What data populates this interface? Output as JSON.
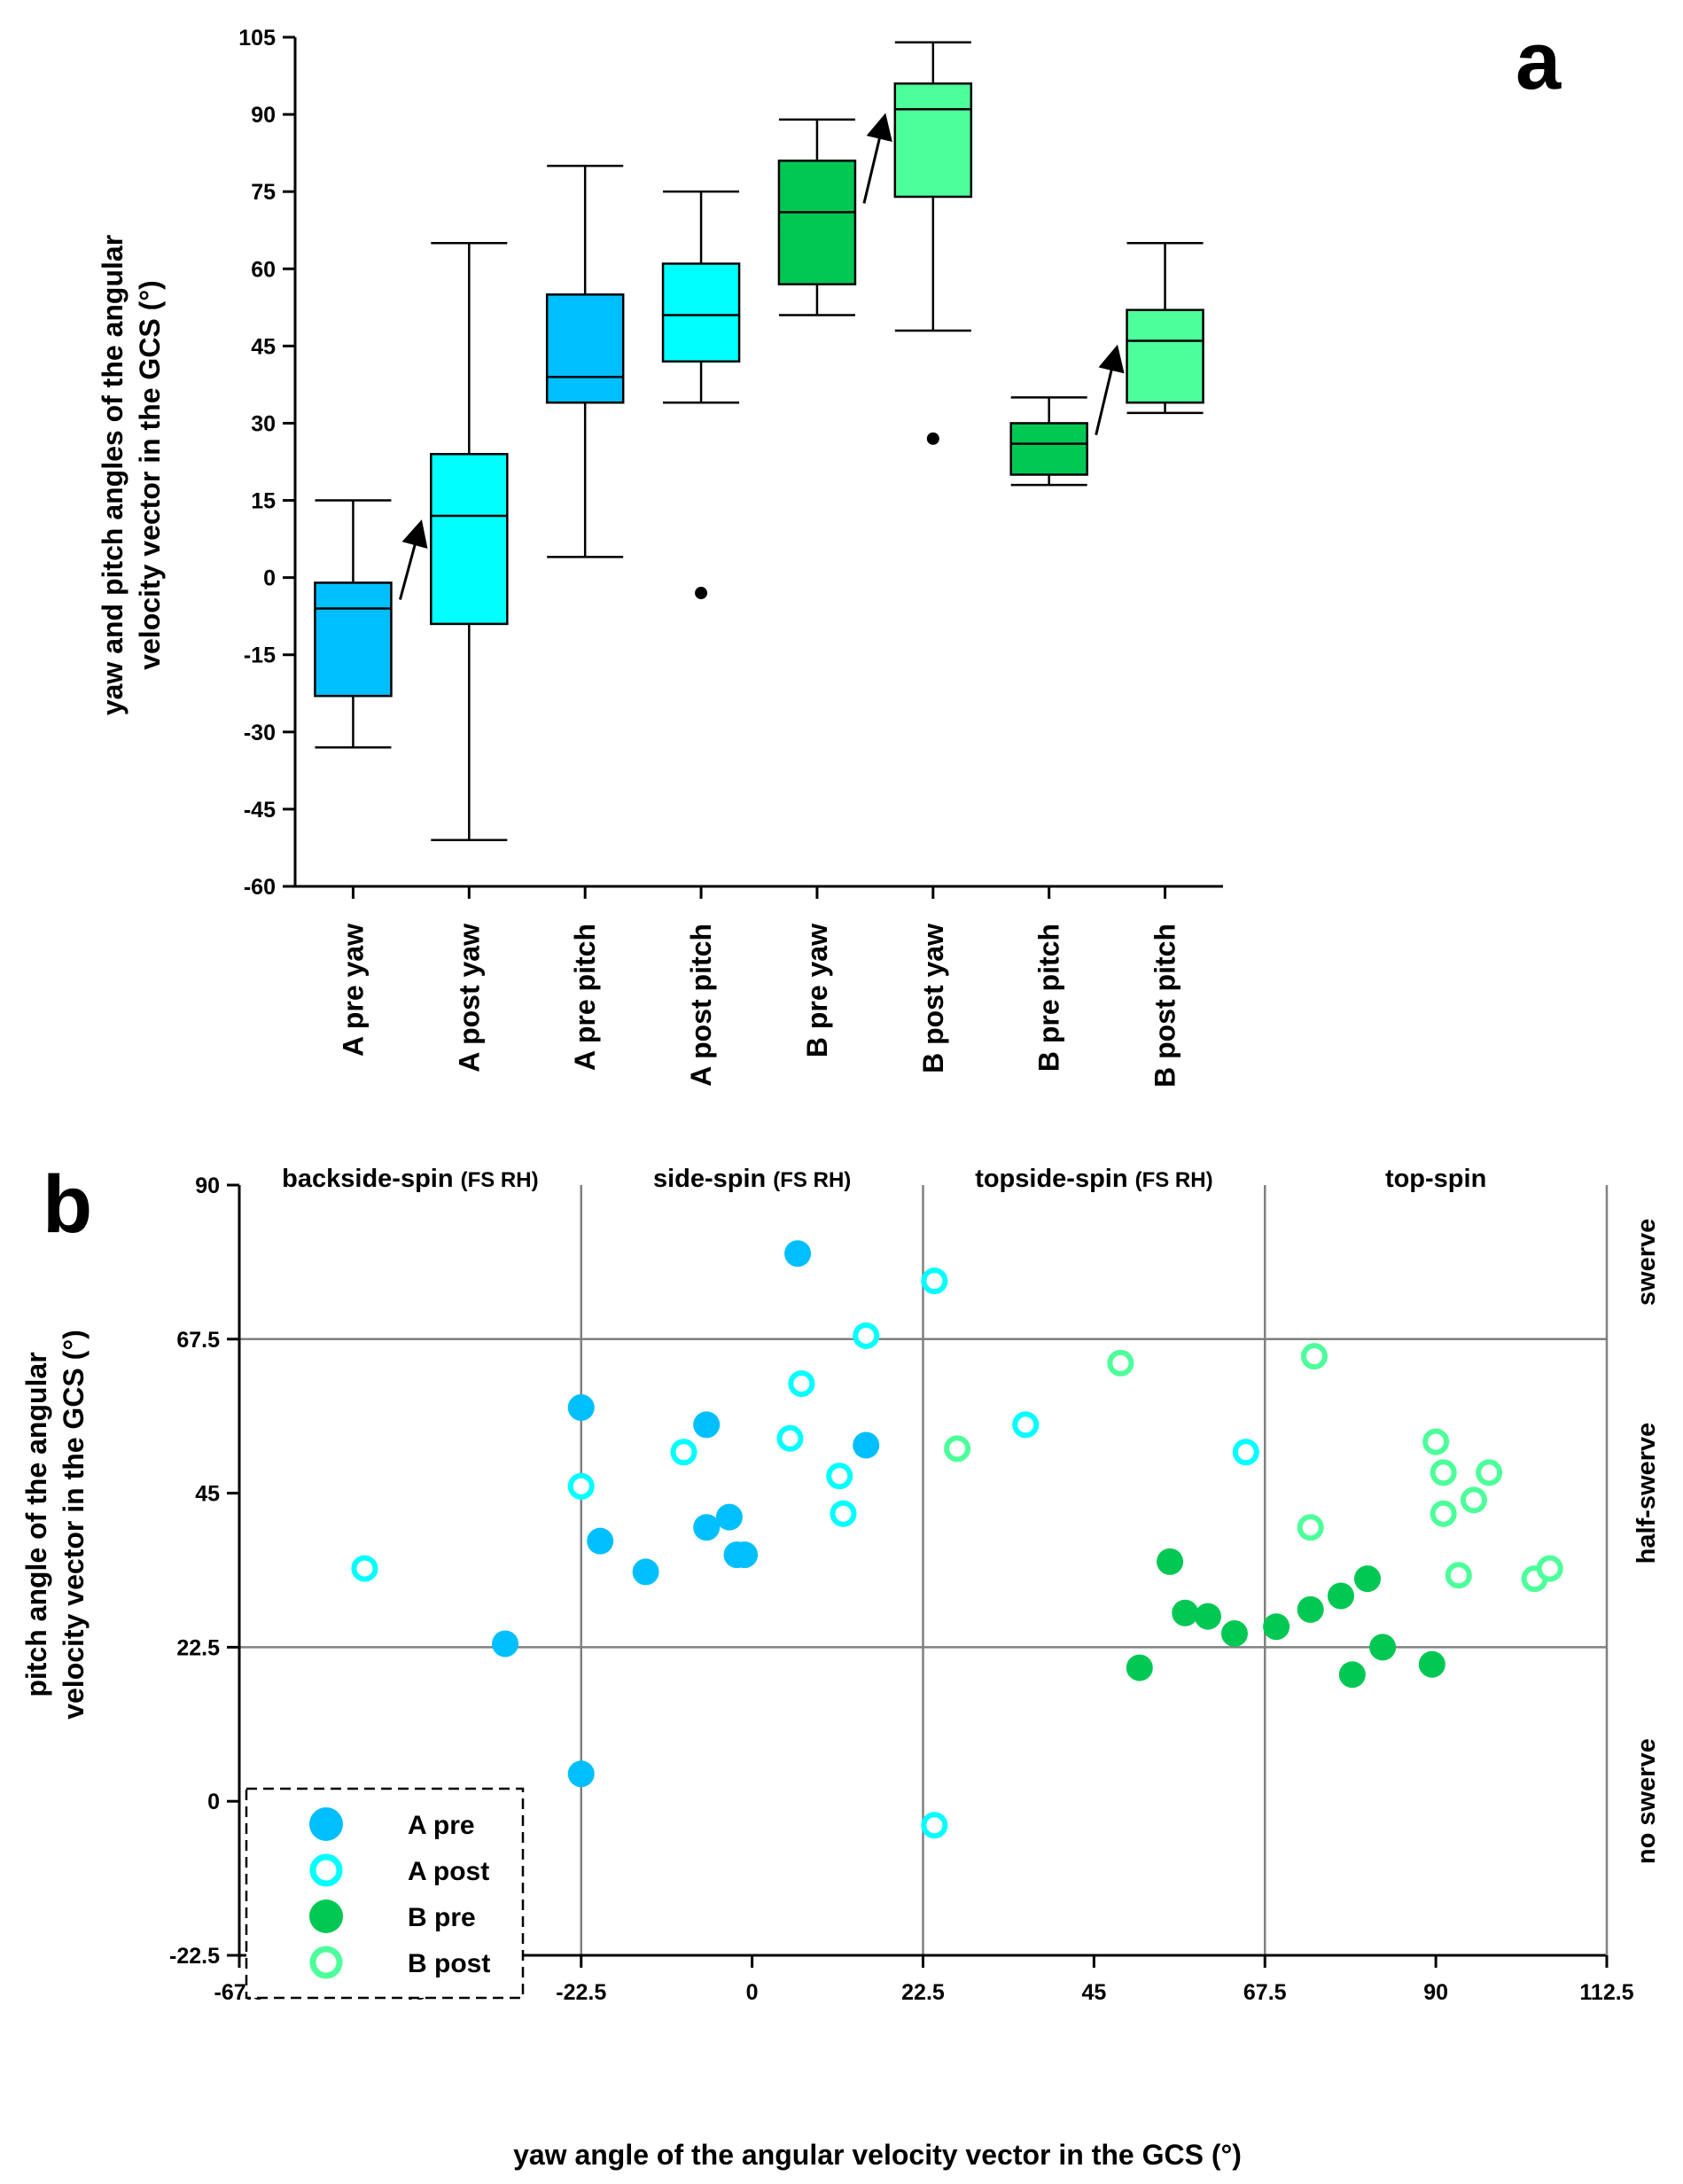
{
  "chart_data": [
    {
      "type": "box",
      "panel": "a",
      "title": "",
      "ylabel_line1": "yaw and pitch angles of the angular",
      "ylabel_line2": "velocity vector in the GCS (°)",
      "ylim": [
        -60,
        105
      ],
      "yticks": [
        -60,
        -45,
        -30,
        -15,
        0,
        15,
        30,
        45,
        60,
        75,
        90,
        105
      ],
      "categories": [
        "A pre yaw",
        "A post yaw",
        "A pre pitch",
        "A post pitch",
        "B pre yaw",
        "B post yaw",
        "B pre pitch",
        "B post pitch"
      ],
      "boxes": [
        {
          "category": "A pre yaw",
          "min": -33,
          "q1": -23,
          "median": -6,
          "q3": -1,
          "max": 15,
          "outliers": [],
          "color": "#00bfff"
        },
        {
          "category": "A post yaw",
          "min": -51,
          "q1": -9,
          "median": 12,
          "q3": 24,
          "max": 65,
          "outliers": [],
          "color": "#00ffff"
        },
        {
          "category": "A pre pitch",
          "min": 4,
          "q1": 34,
          "median": 39,
          "q3": 55,
          "max": 80,
          "outliers": [],
          "color": "#00bfff"
        },
        {
          "category": "A post pitch",
          "min": 34,
          "q1": 42,
          "median": 51,
          "q3": 61,
          "max": 75,
          "outliers": [
            -3
          ],
          "color": "#00ffff"
        },
        {
          "category": "B pre yaw",
          "min": 51,
          "q1": 57,
          "median": 71,
          "q3": 81,
          "max": 89,
          "outliers": [],
          "color": "#00c853"
        },
        {
          "category": "B post yaw",
          "min": 48,
          "q1": 74,
          "median": 91,
          "q3": 96,
          "max": 104,
          "outliers": [
            27
          ],
          "color": "#4dff9a"
        },
        {
          "category": "B pre pitch",
          "min": 18,
          "q1": 20,
          "median": 26,
          "q3": 30,
          "max": 35,
          "outliers": [],
          "color": "#00c853"
        },
        {
          "category": "B post pitch",
          "min": 32,
          "q1": 34,
          "median": 46,
          "q3": 52,
          "max": 65,
          "outliers": [],
          "color": "#4dff9a"
        }
      ],
      "arrows": [
        {
          "from": "A pre yaw",
          "to": "A post yaw"
        },
        {
          "from": "B pre yaw",
          "to": "B post yaw"
        },
        {
          "from": "B pre pitch",
          "to": "B post pitch"
        }
      ]
    },
    {
      "type": "scatter",
      "panel": "b",
      "xlabel": "yaw angle of the angular velocity vector in the GCS (°)",
      "ylabel_line1": "pitch angle of the angular",
      "ylabel_line2": "velocity vector in the GCS (°)",
      "xlim": [
        -67.5,
        112.5
      ],
      "ylim": [
        -22.5,
        90
      ],
      "xticks": [
        "-67.5",
        "-45",
        "-22.5",
        "0",
        "22.5",
        "45",
        "67.5",
        "90",
        "112.5"
      ],
      "yticks": [
        "-22.5",
        "0",
        "22.5",
        "45",
        "67.5",
        "90"
      ],
      "grid_x": [
        -22.5,
        22.5,
        67.5
      ],
      "grid_y": [
        22.5,
        67.5
      ],
      "regions_top": [
        {
          "label": "backside-spin",
          "sub": "(FS RH)"
        },
        {
          "label": "side-spin",
          "sub": "(FS RH)"
        },
        {
          "label": "topside-spin",
          "sub": "(FS RH)"
        },
        {
          "label": "top-spin",
          "sub": ""
        }
      ],
      "regions_right": [
        "swerve",
        "half-swerve",
        "no swerve"
      ],
      "legend_position": "bottom-left",
      "series": [
        {
          "name": "A pre",
          "filled": true,
          "color": "#00bfff",
          "points": [
            [
              6,
              80
            ],
            [
              -22.5,
              57.5
            ],
            [
              -6,
              55
            ],
            [
              15,
              52
            ],
            [
              -3,
              41.5
            ],
            [
              -6,
              40
            ],
            [
              -20,
              38
            ],
            [
              -2,
              36
            ],
            [
              -1,
              36
            ],
            [
              -14,
              33.5
            ],
            [
              -32.5,
              23
            ],
            [
              -22.5,
              4
            ]
          ]
        },
        {
          "name": "A post",
          "filled": false,
          "color": "#00ffff",
          "points": [
            [
              24,
              76
            ],
            [
              15,
              68
            ],
            [
              6.5,
              61
            ],
            [
              5,
              53
            ],
            [
              36,
              55
            ],
            [
              -9,
              51
            ],
            [
              11.5,
              47.5
            ],
            [
              12,
              42
            ],
            [
              -22.5,
              46
            ],
            [
              -51,
              34
            ],
            [
              65,
              51
            ],
            [
              24,
              -3.5
            ]
          ]
        },
        {
          "name": "B pre",
          "filled": true,
          "color": "#00c853",
          "points": [
            [
              55,
              35
            ],
            [
              57,
              27.5
            ],
            [
              60,
              27
            ],
            [
              63.5,
              24.5
            ],
            [
              69,
              25.5
            ],
            [
              73.5,
              28
            ],
            [
              77.5,
              30
            ],
            [
              81,
              32.5
            ],
            [
              83,
              22.5
            ],
            [
              89.5,
              20
            ],
            [
              79,
              18.5
            ],
            [
              51,
              19.5
            ]
          ]
        },
        {
          "name": "B post",
          "filled": false,
          "color": "#4dff9a",
          "points": [
            [
              74,
              65
            ],
            [
              48.5,
              64
            ],
            [
              27,
              51.5
            ],
            [
              73.5,
              40
            ],
            [
              90,
              52.5
            ],
            [
              91,
              48
            ],
            [
              97,
              48
            ],
            [
              95,
              44
            ],
            [
              91,
              42
            ],
            [
              93,
              33
            ],
            [
              103,
              32.5
            ],
            [
              105,
              34
            ]
          ]
        }
      ]
    }
  ],
  "panel_letters": {
    "a": "a",
    "b": "b"
  }
}
